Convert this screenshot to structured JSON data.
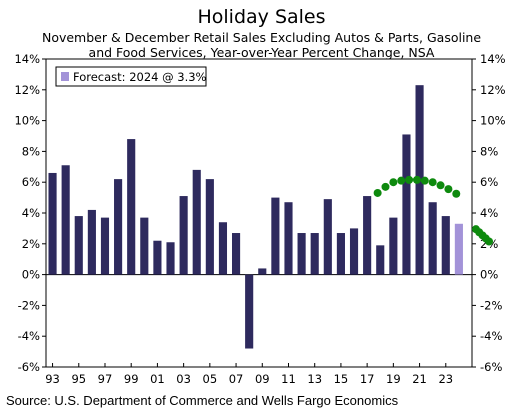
{
  "chart_data": {
    "type": "bar",
    "title": "Holiday Sales",
    "subtitle_lines": [
      "November & December Retail Sales Excluding Autos & Parts, Gasoline",
      "and Food Services, Year-over-Year Percent Change, NSA"
    ],
    "source": "Source: U.S. Department of Commerce and Wells Fargo Economics",
    "legend": {
      "label": "Forecast: 2024 @ 3.3%",
      "placement": "top-left"
    },
    "x": [
      1993,
      1994,
      1995,
      1996,
      1997,
      1998,
      1999,
      2000,
      2001,
      2002,
      2003,
      2004,
      2005,
      2006,
      2007,
      2008,
      2009,
      2010,
      2011,
      2012,
      2013,
      2014,
      2015,
      2016,
      2017,
      2018,
      2019,
      2020,
      2021,
      2022,
      2023,
      2024
    ],
    "values": [
      6.6,
      7.1,
      3.8,
      4.2,
      3.7,
      6.2,
      8.8,
      3.7,
      2.2,
      2.1,
      5.1,
      6.8,
      6.2,
      3.4,
      2.7,
      -4.8,
      0.4,
      5.0,
      4.7,
      2.7,
      2.7,
      4.9,
      2.7,
      3.0,
      5.1,
      1.9,
      3.7,
      9.1,
      12.3,
      4.7,
      3.8,
      3.3
    ],
    "forecast_index": 31,
    "x_tick_labels": [
      "93",
      "95",
      "97",
      "99",
      "01",
      "03",
      "05",
      "07",
      "09",
      "11",
      "13",
      "15",
      "17",
      "19",
      "21",
      "23"
    ],
    "x_tick_years": [
      1993,
      1995,
      1997,
      1999,
      2001,
      2003,
      2005,
      2007,
      2009,
      2011,
      2013,
      2015,
      2017,
      2019,
      2021,
      2023
    ],
    "y_ticks": [
      14,
      12,
      10,
      8,
      6,
      4,
      2,
      0,
      -2,
      -4,
      -6
    ],
    "y_tick_labels": [
      "14%",
      "12%",
      "10%",
      "8%",
      "6%",
      "4%",
      "2%",
      "0%",
      "-2%",
      "-4%",
      "-6%"
    ],
    "ylim": [
      -6,
      14
    ],
    "grid": false,
    "colors": {
      "bar": "#2e2a5e",
      "forecast": "#a393d8",
      "trend": "#0e8a0e"
    },
    "annotation_arc_years": [
      2017.8,
      2018.4,
      2019,
      2019.6,
      2020.2,
      2020.8,
      2021.4,
      2022,
      2022.6,
      2023.2,
      2023.8
    ],
    "annotation_arc_values": [
      5.3,
      5.7,
      6.0,
      6.1,
      6.15,
      6.15,
      6.1,
      6.0,
      5.8,
      5.55,
      5.25
    ],
    "annotation_dash_years": [
      2025.3,
      2025.55,
      2025.8,
      2026.05,
      2026.3
    ],
    "annotation_dash_values": [
      2.95,
      2.75,
      2.55,
      2.35,
      2.15
    ]
  }
}
